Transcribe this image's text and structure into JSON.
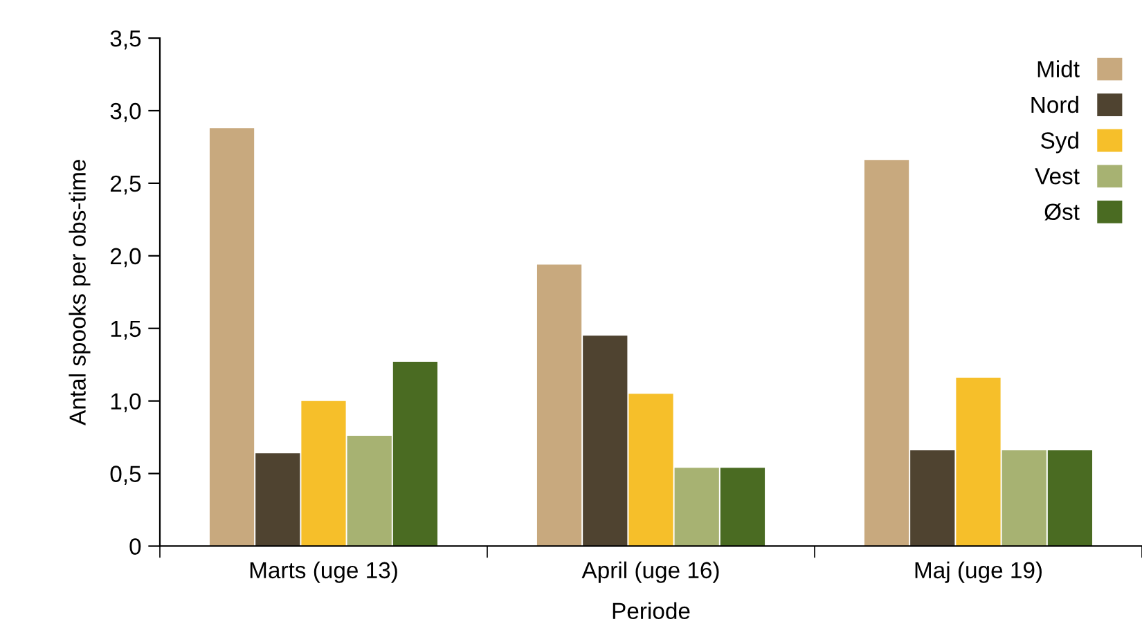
{
  "chart_data": {
    "type": "bar",
    "xlabel": "Periode",
    "ylabel": "Antal spooks per obs-time",
    "categories": [
      "Marts (uge 13)",
      "April (uge 16)",
      "Maj (uge 19)"
    ],
    "series": [
      {
        "name": "Midt",
        "color": "#c8a97e",
        "values": [
          2.88,
          1.94,
          2.66
        ]
      },
      {
        "name": "Nord",
        "color": "#4f4330",
        "values": [
          0.64,
          1.45,
          0.66
        ]
      },
      {
        "name": "Syd",
        "color": "#f6bf2a",
        "values": [
          1.0,
          1.05,
          1.16
        ]
      },
      {
        "name": "Vest",
        "color": "#a7b272",
        "values": [
          0.76,
          0.54,
          0.66
        ]
      },
      {
        "name": "Øst",
        "color": "#4a6b22",
        "values": [
          1.27,
          0.54,
          0.66
        ]
      }
    ],
    "ylim": [
      0,
      3.5
    ],
    "yticks": [
      0,
      {
        "value": 0.5,
        "label": "0,5"
      },
      {
        "value": 1,
        "label": "1,0"
      },
      {
        "value": 1.5,
        "label": "1,5"
      },
      {
        "value": 2,
        "label": "2,0"
      },
      {
        "value": 2.5,
        "label": "2,5"
      },
      {
        "value": 3,
        "label": "3,0"
      },
      {
        "value": 3.5,
        "label": "3,5"
      }
    ],
    "grid": false,
    "legend": "top right"
  }
}
